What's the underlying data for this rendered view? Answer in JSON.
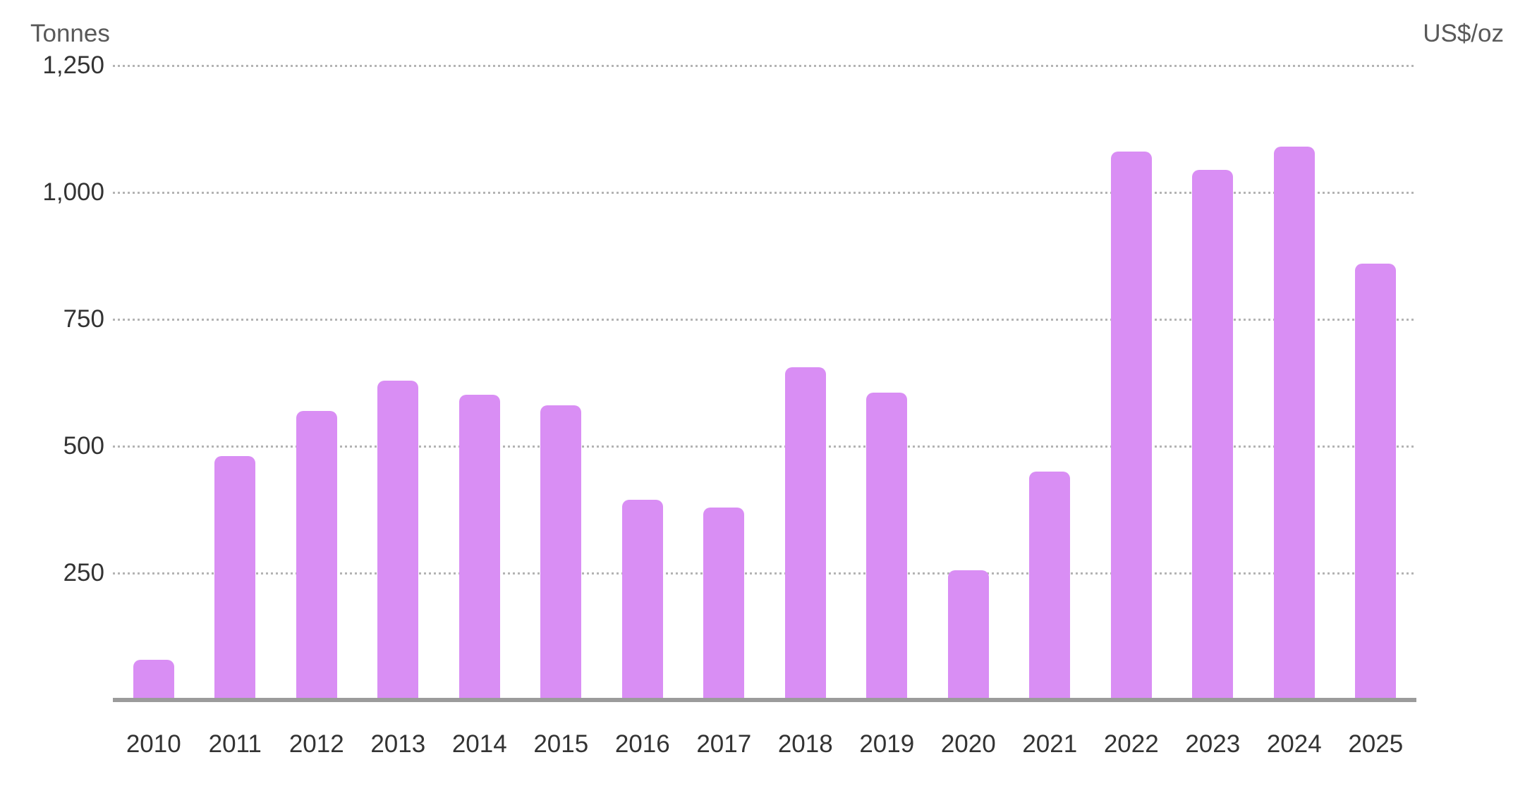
{
  "chart_data": {
    "type": "bar",
    "title": "",
    "categories": [
      "2010",
      "2011",
      "2012",
      "2013",
      "2014",
      "2015",
      "2016",
      "2017",
      "2018",
      "2019",
      "2020",
      "2021",
      "2022",
      "2023",
      "2024",
      "2025"
    ],
    "series": [
      {
        "name": "Tonnes",
        "values": [
          79,
          481,
          570,
          629,
          601,
          580,
          395,
          379,
          656,
          605,
          255,
          450,
          1080,
          1045,
          1090,
          860
        ]
      }
    ],
    "xlabel": "",
    "ylabel_left": "Tonnes",
    "ylabel_right": "US$/oz",
    "ylim": [
      0,
      1250
    ],
    "yticks": [
      {
        "value": 250,
        "label": "250"
      },
      {
        "value": 500,
        "label": "500"
      },
      {
        "value": 750,
        "label": "750"
      },
      {
        "value": 1000,
        "label": "1,000"
      },
      {
        "value": 1250,
        "label": "1,250"
      }
    ],
    "grid": "horizontal-dotted",
    "legend": "none"
  },
  "colors": {
    "bar": "#d98ef4",
    "gridline": "#b3b3b3",
    "baseline": "#9b9b9b",
    "tick_text": "#333333",
    "axis_title_text": "#595959",
    "background": "#ffffff"
  }
}
